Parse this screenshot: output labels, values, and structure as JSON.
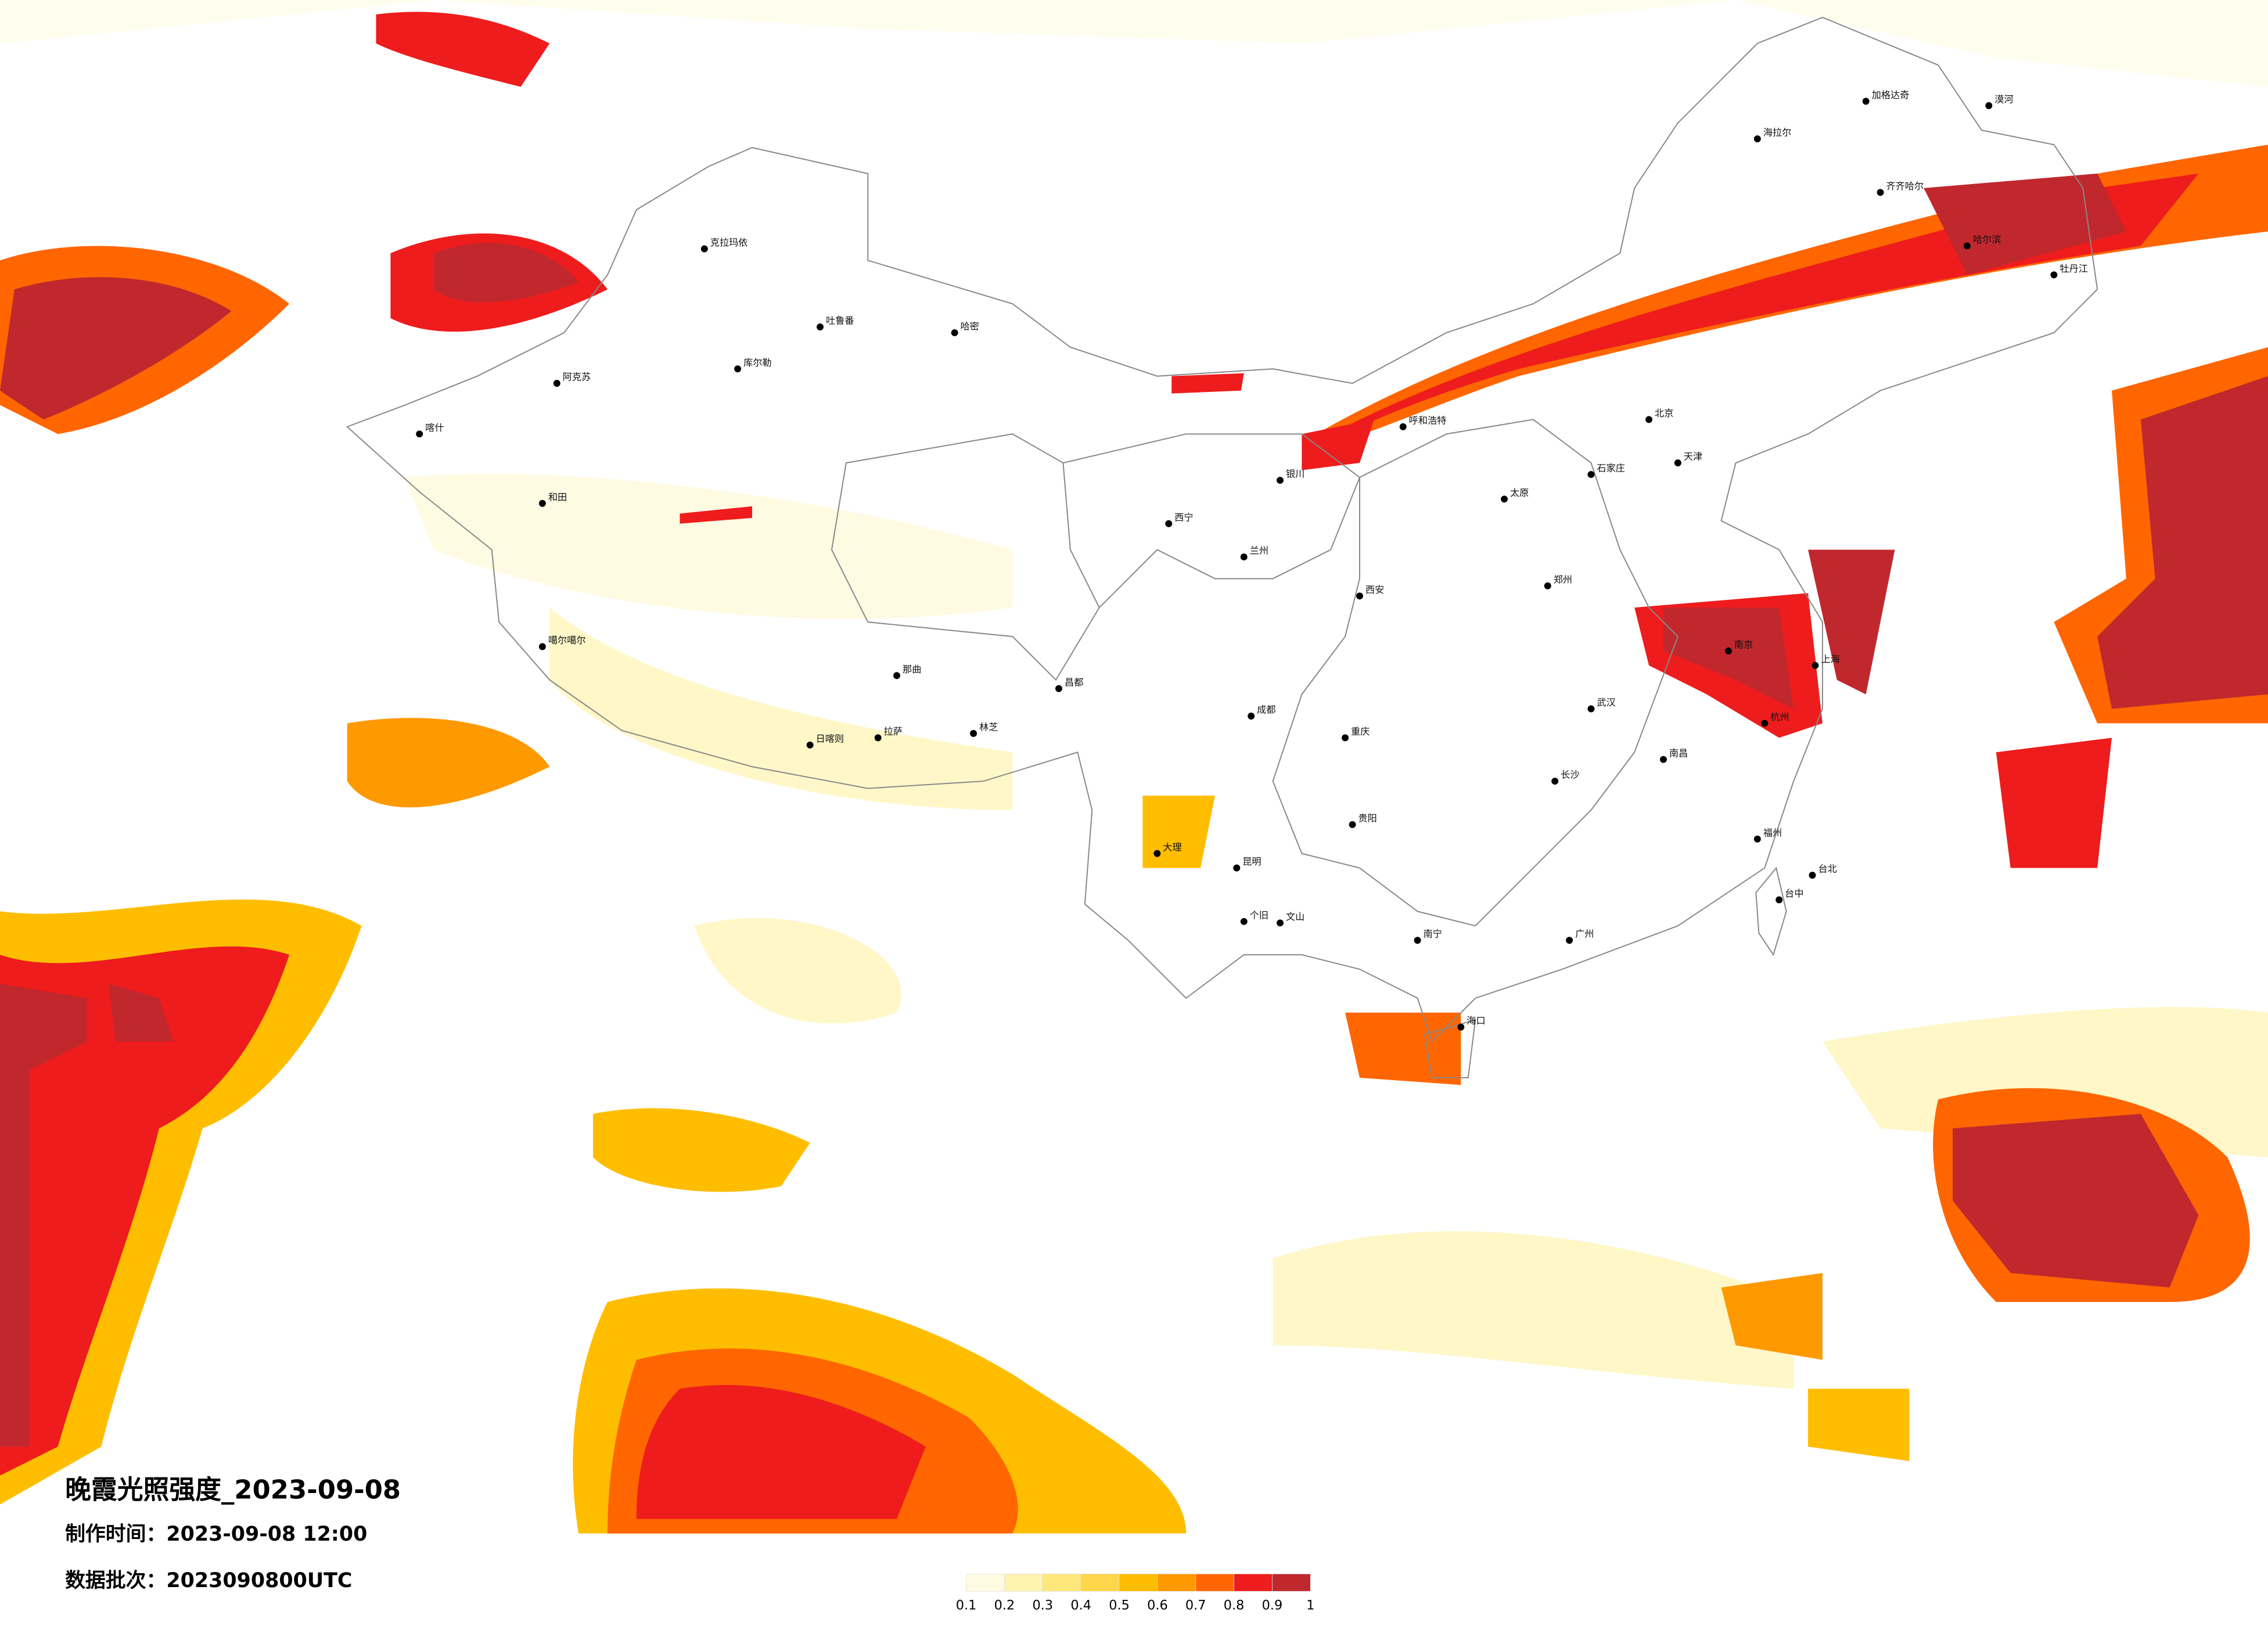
{
  "map": {
    "title": "晚霞光照强度_2023-09-08",
    "made_time": "制作时间：2023-09-08 12:00",
    "data_batch": "数据批次：2023090800UTC",
    "legend": {
      "ticks": [
        0.1,
        0.2,
        0.3,
        0.4,
        0.5,
        0.6,
        0.7,
        0.8,
        0.9,
        1
      ],
      "colors": [
        "#fffbe2",
        "#fff3b0",
        "#ffe77a",
        "#ffd54a",
        "#ffbd00",
        "#ff9900",
        "#ff6600",
        "#ee1c1c",
        "#c0282e"
      ]
    },
    "cities": [
      "漠河",
      "加格达奇",
      "海拉尔",
      "齐齐哈尔",
      "哈尔滨",
      "牡丹江",
      "克拉玛依",
      "阿克苏",
      "喀什",
      "和田",
      "库尔勒",
      "吐鲁番",
      "哈密",
      "噶尔噶尔",
      "日喀则",
      "拉萨",
      "那曲",
      "林芝",
      "昌都",
      "西宁",
      "兰州",
      "银川",
      "呼和浩特",
      "北京",
      "天津",
      "石家庄",
      "太原",
      "西安",
      "郑州",
      "武汉",
      "长沙",
      "南昌",
      "杭州",
      "上海",
      "南京",
      "福州",
      "台北",
      "台中",
      "广州",
      "南宁",
      "海口",
      "昆明",
      "贵阳",
      "成都",
      "重庆",
      "大理",
      "个旧",
      "文山"
    ]
  }
}
